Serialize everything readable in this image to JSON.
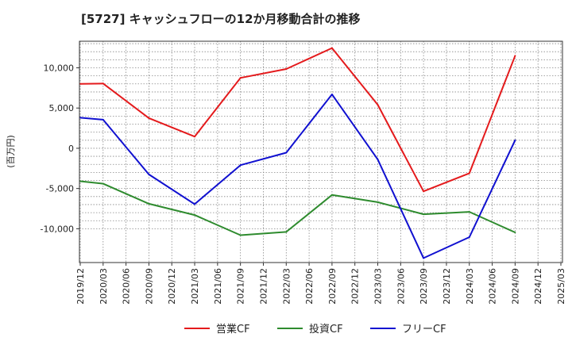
{
  "chart_data": {
    "type": "line",
    "title": "[5727]  キャッシュフローの12か月移動合計の推移",
    "ylabel": "(百万円)",
    "xlabel": "",
    "ylim": [
      -14200,
      13300
    ],
    "yticks": [
      10000,
      5000,
      0,
      -5000,
      -10000
    ],
    "ytick_labels": [
      "10,000",
      "5,000",
      "0",
      "-5,000",
      "-10,000"
    ],
    "categories": [
      "2019/12",
      "2020/03",
      "2020/06",
      "2020/09",
      "2020/12",
      "2021/03",
      "2021/06",
      "2021/09",
      "2021/12",
      "2022/03",
      "2022/06",
      "2022/09",
      "2022/12",
      "2023/03",
      "2023/06",
      "2023/09",
      "2023/12",
      "2024/03",
      "2024/06",
      "2024/09",
      "2024/12",
      "2025/03"
    ],
    "grid": true,
    "legend_position": "bottom",
    "series": [
      {
        "name": "営業CF",
        "color": "#e41a1c",
        "points": [
          [
            0,
            8000
          ],
          [
            1,
            8050
          ],
          [
            3,
            3750
          ],
          [
            5,
            1450
          ],
          [
            7,
            8750
          ],
          [
            9,
            9850
          ],
          [
            11,
            12450
          ],
          [
            13,
            5400
          ],
          [
            15,
            -5350
          ],
          [
            17,
            -3100
          ],
          [
            19,
            11500
          ]
        ]
      },
      {
        "name": "投資CF",
        "color": "#2e8b2e",
        "points": [
          [
            0,
            -4100
          ],
          [
            1,
            -4400
          ],
          [
            3,
            -6900
          ],
          [
            5,
            -8300
          ],
          [
            7,
            -10800
          ],
          [
            9,
            -10400
          ],
          [
            11,
            -5800
          ],
          [
            13,
            -6700
          ],
          [
            15,
            -8200
          ],
          [
            17,
            -7900
          ],
          [
            19,
            -10450
          ]
        ]
      },
      {
        "name": "フリーCF",
        "color": "#1010d0",
        "points": [
          [
            0,
            3800
          ],
          [
            1,
            3550
          ],
          [
            3,
            -3250
          ],
          [
            5,
            -6950
          ],
          [
            7,
            -2100
          ],
          [
            9,
            -550
          ],
          [
            11,
            6700
          ],
          [
            13,
            -1400
          ],
          [
            15,
            -13650
          ],
          [
            17,
            -11050
          ],
          [
            19,
            1000
          ]
        ]
      }
    ]
  }
}
